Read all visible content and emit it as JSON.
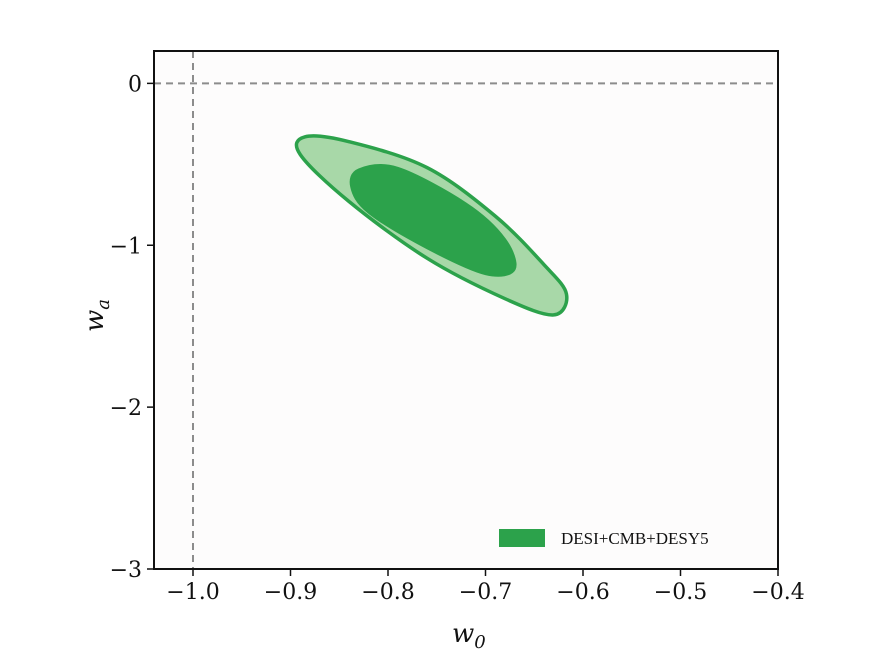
{
  "chart_data": {
    "type": "contour",
    "title": "",
    "xlabel": "w",
    "xlabel_sub": "0",
    "ylabel": "w",
    "ylabel_sub": "a",
    "xlim": [
      -1.04,
      -0.4
    ],
    "ylim": [
      -3.0,
      0.2
    ],
    "xticks": [
      -1.0,
      -0.9,
      -0.8,
      -0.7,
      -0.6,
      -0.5,
      -0.4
    ],
    "xtick_labels": [
      "−1.0",
      "−0.9",
      "−0.8",
      "−0.7",
      "−0.6",
      "−0.5",
      "−0.4"
    ],
    "yticks": [
      0,
      -1,
      -2,
      -3
    ],
    "ytick_labels": [
      "0",
      "−1",
      "−2",
      "−3"
    ],
    "reference_lines": {
      "x": -1.0,
      "y": 0.0,
      "style": "dashed",
      "color": "#8c8c8c"
    },
    "series": [
      {
        "name": "DESI+CMB+DESY5",
        "colors": {
          "outer_fill": "#a8d8a8",
          "inner_fill": "#2ca24b",
          "edge": "#2ca24b"
        },
        "contours": [
          {
            "level": "95%",
            "points": [
              [
                -0.885,
                -0.33
              ],
              [
                -0.84,
                -0.36
              ],
              [
                -0.76,
                -0.52
              ],
              [
                -0.69,
                -0.82
              ],
              [
                -0.64,
                -1.12
              ],
              [
                -0.617,
                -1.3
              ],
              [
                -0.63,
                -1.43
              ],
              [
                -0.68,
                -1.33
              ],
              [
                -0.76,
                -1.08
              ],
              [
                -0.84,
                -0.73
              ],
              [
                -0.89,
                -0.44
              ]
            ]
          },
          {
            "level": "68%",
            "points": [
              [
                -0.83,
                -0.53
              ],
              [
                -0.79,
                -0.52
              ],
              [
                -0.72,
                -0.74
              ],
              [
                -0.68,
                -0.96
              ],
              [
                -0.67,
                -1.15
              ],
              [
                -0.7,
                -1.18
              ],
              [
                -0.76,
                -1.02
              ],
              [
                -0.82,
                -0.8
              ],
              [
                -0.838,
                -0.64
              ]
            ]
          }
        ]
      }
    ],
    "legend": {
      "position": "bottom-right"
    }
  }
}
